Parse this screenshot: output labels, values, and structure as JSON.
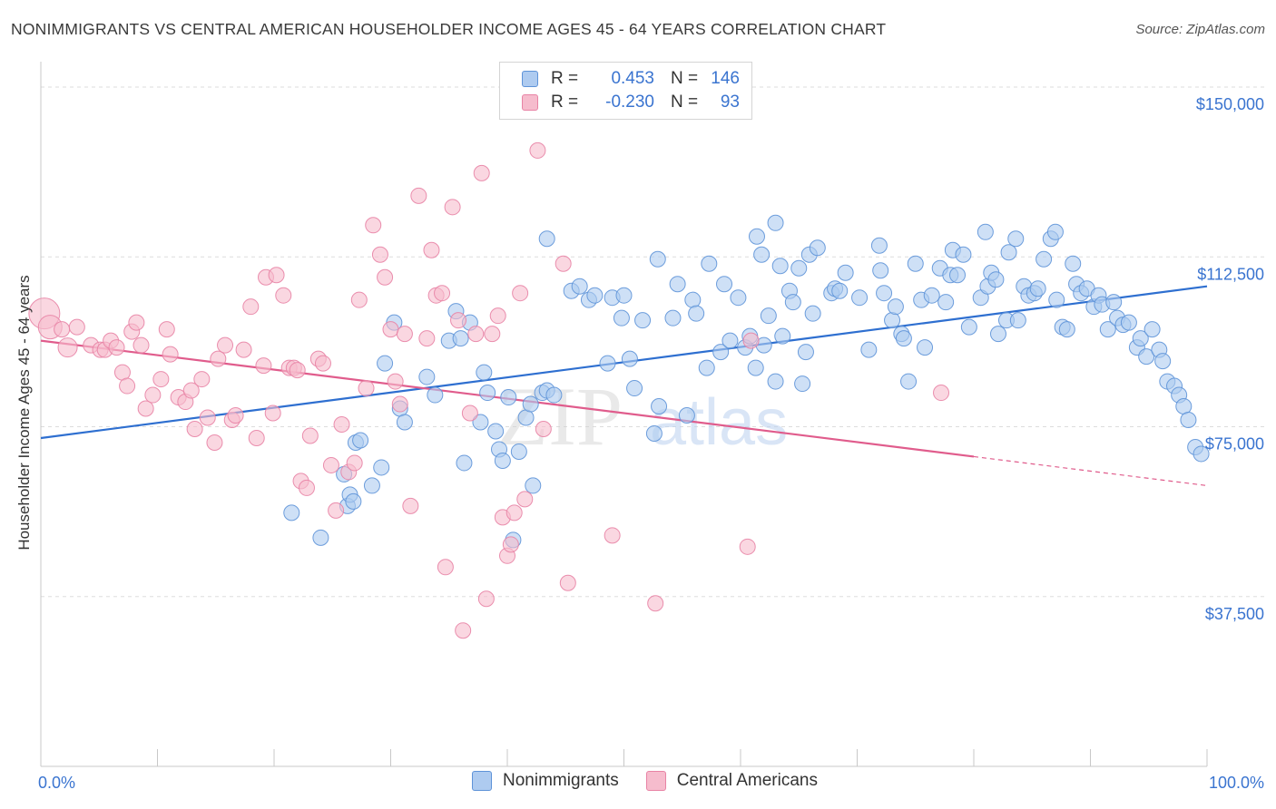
{
  "title": "NONIMMIGRANTS VS CENTRAL AMERICAN HOUSEHOLDER INCOME AGES 45 - 64 YEARS CORRELATION CHART",
  "source": "Source: ZipAtlas.com",
  "watermark": {
    "zip": "ZIP",
    "atlas": "atlas"
  },
  "legend": {
    "rows": [
      {
        "r_label": "R =",
        "r_value": "0.453",
        "n_label": "N =",
        "n_value": "146"
      },
      {
        "r_label": "R =",
        "r_value": "-0.230",
        "n_label": "N =",
        "n_value": "93"
      }
    ]
  },
  "bottom_legend": [
    "Nonimmigrants",
    "Central Americans"
  ],
  "colors": {
    "blue_fill": "#aecbf0",
    "blue_stroke": "#5e93d8",
    "blue_line": "#2e6fd0",
    "pink_fill": "#f6bccd",
    "pink_stroke": "#e883a5",
    "pink_line": "#e05c8c",
    "tick_label": "#3a74d0",
    "grid": "#dddddd"
  },
  "chart_data": {
    "type": "scatter",
    "title": "NONIMMIGRANTS VS CENTRAL AMERICAN HOUSEHOLDER INCOME AGES 45 - 64 YEARS CORRELATION CHART",
    "xlabel": "",
    "ylabel": "Householder Income Ages 45 - 64 years",
    "xlim": [
      0,
      100
    ],
    "ylim": [
      0,
      155000
    ],
    "x_tick_labels": [
      "0.0%",
      "100.0%"
    ],
    "y_ticks": [
      37500,
      75000,
      112500,
      150000
    ],
    "y_tick_labels": [
      "$37,500",
      "$75,000",
      "$112,500",
      "$150,000"
    ],
    "grid": true,
    "series": [
      {
        "name": "Nonimmigrants",
        "color": "blue",
        "R": 0.453,
        "N": 146,
        "trend": {
          "x": [
            0,
            100
          ],
          "y": [
            72500,
            106000
          ],
          "solid_until": 100
        },
        "points": [
          [
            21.5,
            56000
          ],
          [
            24,
            50500
          ],
          [
            26,
            64500
          ],
          [
            26.3,
            57500
          ],
          [
            26.5,
            60000
          ],
          [
            26.8,
            58500
          ],
          [
            27,
            71500
          ],
          [
            27.4,
            72000
          ],
          [
            28.4,
            62000
          ],
          [
            29.2,
            66000
          ],
          [
            29.5,
            89000
          ],
          [
            30.3,
            98000
          ],
          [
            30.8,
            79000
          ],
          [
            31.2,
            76000
          ],
          [
            33.1,
            86000
          ],
          [
            33.8,
            82000
          ],
          [
            35,
            94000
          ],
          [
            35.6,
            100500
          ],
          [
            36,
            94500
          ],
          [
            36.3,
            67000
          ],
          [
            36.8,
            98000
          ],
          [
            37.7,
            76000
          ],
          [
            38,
            87000
          ],
          [
            38.3,
            82500
          ],
          [
            39,
            74000
          ],
          [
            39.3,
            70000
          ],
          [
            39.6,
            67500
          ],
          [
            40.1,
            81500
          ],
          [
            40.5,
            50000
          ],
          [
            41,
            69500
          ],
          [
            41.6,
            77000
          ],
          [
            42,
            80000
          ],
          [
            42.2,
            62000
          ],
          [
            43,
            82500
          ],
          [
            43.4,
            83000
          ],
          [
            44,
            82000
          ],
          [
            43.4,
            116500
          ],
          [
            45.5,
            105000
          ],
          [
            46.2,
            106000
          ],
          [
            47,
            103000
          ],
          [
            47.5,
            104000
          ],
          [
            48.6,
            89000
          ],
          [
            49,
            103500
          ],
          [
            49.8,
            99000
          ],
          [
            50,
            104000
          ],
          [
            50.5,
            90000
          ],
          [
            50.9,
            83500
          ],
          [
            51.6,
            98500
          ],
          [
            52.6,
            73500
          ],
          [
            53,
            79500
          ],
          [
            52.9,
            112000
          ],
          [
            54.2,
            99000
          ],
          [
            54.6,
            106500
          ],
          [
            55.9,
            103000
          ],
          [
            55.4,
            77500
          ],
          [
            56.2,
            100000
          ],
          [
            57.1,
            88000
          ],
          [
            57.3,
            111000
          ],
          [
            58.3,
            91500
          ],
          [
            58.6,
            106500
          ],
          [
            59.1,
            94000
          ],
          [
            59.8,
            103500
          ],
          [
            60.4,
            92500
          ],
          [
            60.8,
            95000
          ],
          [
            61.3,
            88000
          ],
          [
            61.4,
            117000
          ],
          [
            61.8,
            113000
          ],
          [
            62,
            93000
          ],
          [
            62.4,
            99500
          ],
          [
            63,
            85000
          ],
          [
            63,
            120000
          ],
          [
            63.4,
            110500
          ],
          [
            63.6,
            95000
          ],
          [
            64.2,
            105000
          ],
          [
            64.5,
            102500
          ],
          [
            65,
            110000
          ],
          [
            65.3,
            84500
          ],
          [
            65.6,
            91500
          ],
          [
            65.9,
            113000
          ],
          [
            66.2,
            100000
          ],
          [
            66.6,
            114500
          ],
          [
            67.8,
            104500
          ],
          [
            68.1,
            105500
          ],
          [
            68.5,
            105000
          ],
          [
            69,
            109000
          ],
          [
            70.2,
            103500
          ],
          [
            71,
            92000
          ],
          [
            71.9,
            115000
          ],
          [
            72,
            109500
          ],
          [
            72.3,
            104500
          ],
          [
            73,
            98500
          ],
          [
            73.3,
            101500
          ],
          [
            73.8,
            95500
          ],
          [
            74,
            94500
          ],
          [
            74.4,
            85000
          ],
          [
            75,
            111000
          ],
          [
            75.5,
            103000
          ],
          [
            75.8,
            92500
          ],
          [
            76.4,
            104000
          ],
          [
            77.1,
            110000
          ],
          [
            77.6,
            102500
          ],
          [
            78,
            108500
          ],
          [
            78.2,
            114000
          ],
          [
            78.6,
            108500
          ],
          [
            79.1,
            113000
          ],
          [
            79.6,
            97000
          ],
          [
            80.6,
            103500
          ],
          [
            81,
            118000
          ],
          [
            81.2,
            106000
          ],
          [
            81.5,
            109000
          ],
          [
            81.9,
            107500
          ],
          [
            82.1,
            95500
          ],
          [
            82.8,
            98500
          ],
          [
            83,
            113500
          ],
          [
            83.6,
            116500
          ],
          [
            83.8,
            98500
          ],
          [
            84.3,
            106000
          ],
          [
            84.7,
            104000
          ],
          [
            85.2,
            104500
          ],
          [
            85.5,
            105500
          ],
          [
            86,
            112000
          ],
          [
            86.6,
            116500
          ],
          [
            87,
            118000
          ],
          [
            87.1,
            103000
          ],
          [
            87.6,
            97000
          ],
          [
            88,
            96500
          ],
          [
            88.5,
            111000
          ],
          [
            88.8,
            106500
          ],
          [
            89.2,
            104500
          ],
          [
            89.7,
            105500
          ],
          [
            90.3,
            101500
          ],
          [
            90.7,
            104000
          ],
          [
            91,
            102000
          ],
          [
            91.5,
            96500
          ],
          [
            92,
            102500
          ],
          [
            92.3,
            99000
          ],
          [
            92.8,
            97500
          ],
          [
            93.3,
            98000
          ],
          [
            94,
            92500
          ],
          [
            94.3,
            94500
          ],
          [
            94.8,
            90500
          ],
          [
            95.3,
            96500
          ],
          [
            95.9,
            92000
          ],
          [
            96.2,
            89500
          ],
          [
            96.6,
            85000
          ],
          [
            97.2,
            84000
          ],
          [
            97.6,
            82000
          ],
          [
            98,
            79500
          ],
          [
            98.4,
            76500
          ],
          [
            99,
            70500
          ],
          [
            99.5,
            69000
          ]
        ]
      },
      {
        "name": "Central Americans",
        "color": "pink",
        "R": -0.23,
        "N": 93,
        "trend": {
          "x": [
            0,
            100
          ],
          "y": [
            94000,
            62000
          ],
          "solid_until": 80
        },
        "points": [
          [
            0.3,
            100000
          ],
          [
            0.8,
            97000
          ],
          [
            1.8,
            96500
          ],
          [
            2.3,
            92500
          ],
          [
            3.1,
            97000
          ],
          [
            4.3,
            93000
          ],
          [
            5.1,
            92000
          ],
          [
            5.5,
            92000
          ],
          [
            6,
            94000
          ],
          [
            6.5,
            92500
          ],
          [
            7,
            87000
          ],
          [
            7.4,
            84000
          ],
          [
            7.8,
            96000
          ],
          [
            8.2,
            98000
          ],
          [
            8.6,
            93000
          ],
          [
            9,
            79000
          ],
          [
            9.6,
            82000
          ],
          [
            10.3,
            85500
          ],
          [
            10.8,
            96500
          ],
          [
            11.1,
            91000
          ],
          [
            11.8,
            81500
          ],
          [
            12.4,
            80500
          ],
          [
            12.9,
            83000
          ],
          [
            13.2,
            74500
          ],
          [
            13.8,
            85500
          ],
          [
            14.3,
            77000
          ],
          [
            14.9,
            71500
          ],
          [
            15.2,
            90000
          ],
          [
            15.8,
            93000
          ],
          [
            16.4,
            76500
          ],
          [
            16.7,
            77500
          ],
          [
            17.4,
            92000
          ],
          [
            18,
            101500
          ],
          [
            18.5,
            72500
          ],
          [
            19.1,
            88500
          ],
          [
            19.3,
            108000
          ],
          [
            19.9,
            78000
          ],
          [
            20.2,
            108500
          ],
          [
            20.8,
            104000
          ],
          [
            21.3,
            88000
          ],
          [
            21.7,
            88000
          ],
          [
            22,
            87500
          ],
          [
            22.3,
            63000
          ],
          [
            22.8,
            61500
          ],
          [
            23.1,
            73000
          ],
          [
            23.8,
            90000
          ],
          [
            24.2,
            89000
          ],
          [
            24.9,
            66500
          ],
          [
            25.3,
            56500
          ],
          [
            25.8,
            75500
          ],
          [
            26.4,
            65000
          ],
          [
            26.9,
            67000
          ],
          [
            27.3,
            103000
          ],
          [
            27.9,
            83500
          ],
          [
            28.5,
            119500
          ],
          [
            29.1,
            113000
          ],
          [
            29.5,
            108000
          ],
          [
            30,
            96500
          ],
          [
            30.4,
            85000
          ],
          [
            30.8,
            80000
          ],
          [
            31.2,
            95500
          ],
          [
            31.7,
            57500
          ],
          [
            32.4,
            126000
          ],
          [
            33.1,
            94500
          ],
          [
            33.5,
            114000
          ],
          [
            33.9,
            104000
          ],
          [
            34.4,
            104500
          ],
          [
            34.7,
            44000
          ],
          [
            35.3,
            123500
          ],
          [
            35.8,
            98500
          ],
          [
            36.2,
            30000
          ],
          [
            36.8,
            78000
          ],
          [
            37.3,
            95500
          ],
          [
            37.8,
            131000
          ],
          [
            38.2,
            37000
          ],
          [
            38.7,
            95500
          ],
          [
            39.2,
            99500
          ],
          [
            39.6,
            55000
          ],
          [
            40,
            46500
          ],
          [
            40.3,
            49000
          ],
          [
            40.6,
            56000
          ],
          [
            41.1,
            104500
          ],
          [
            41.5,
            59000
          ],
          [
            42.6,
            136000
          ],
          [
            43.1,
            74500
          ],
          [
            44.8,
            111000
          ],
          [
            45.2,
            40500
          ],
          [
            49,
            51000
          ],
          [
            52.7,
            36000
          ],
          [
            60.6,
            48500
          ],
          [
            60.9,
            94000
          ],
          [
            77.2,
            82500
          ]
        ]
      }
    ]
  }
}
